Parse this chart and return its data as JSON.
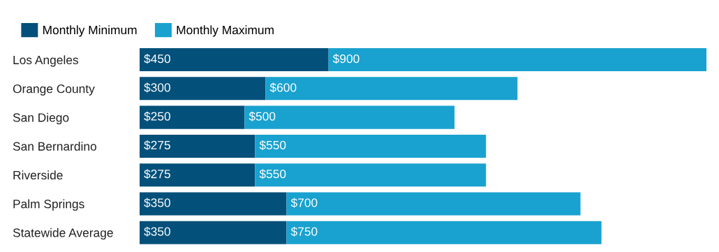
{
  "chart_data": {
    "type": "bar",
    "orientation": "horizontal",
    "stacked": true,
    "legend": "top left",
    "grid": false,
    "categories": [
      "Los Angeles",
      "Orange County",
      "San Diego",
      "San Bernardino",
      "Riverside",
      "Palm Springs",
      "Statewide Average"
    ],
    "series": [
      {
        "name": "Monthly Minimum",
        "color": "#03507a",
        "values": [
          450,
          300,
          250,
          275,
          275,
          350,
          350
        ],
        "value_labels": [
          "$450",
          "$300",
          "$250",
          "$275",
          "$275",
          "$350",
          "$350"
        ]
      },
      {
        "name": "Monthly Maximum",
        "color": "#19a2cf",
        "values": [
          900,
          600,
          500,
          550,
          550,
          700,
          750
        ],
        "value_labels": [
          "$900",
          "$600",
          "$500",
          "$550",
          "$550",
          "$700",
          "$750"
        ]
      }
    ]
  }
}
